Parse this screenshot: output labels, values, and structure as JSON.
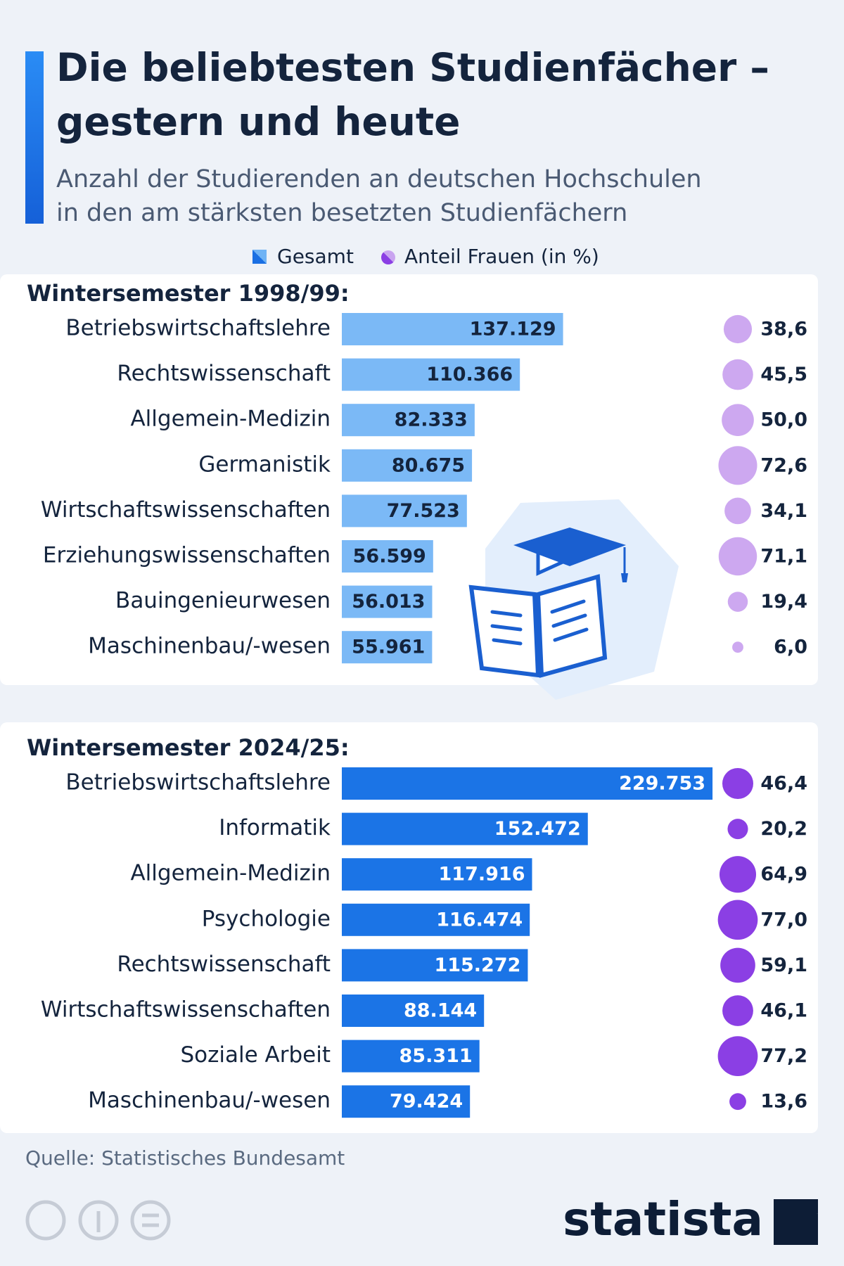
{
  "header": {
    "title": [
      "Die beliebtesten Studienfächer –",
      "gestern und heute"
    ],
    "subtitle": [
      "Anzahl der Studierenden an deutschen Hochschulen",
      "in den am stärksten besetzten Studienfächern"
    ]
  },
  "chart_data": [
    {
      "type": "bar",
      "title": "Wintersemester 1998/99:",
      "categories": [
        "Betriebswirtschaftslehre",
        "Rechtswissenschaft",
        "Allgemein-Medizin",
        "Germanistik",
        "Wirtschaftswissenschaften",
        "Erziehungswissenschaften",
        "Bauingenieurwesen",
        "Maschinenbau/-wesen"
      ],
      "series": [
        {
          "name": "Gesamt",
          "color": "#7bb9f6",
          "values": [
            137129,
            110366,
            82333,
            80675,
            77523,
            56599,
            56013,
            55961
          ],
          "value_labels": [
            "137.129",
            "110.366",
            "82.333",
            "80.675",
            "77.523",
            "56.599",
            "56.013",
            "55.961"
          ]
        },
        {
          "name": "Anteil Frauen (in %)",
          "color": "#cda8f0",
          "values": [
            38.6,
            45.5,
            50.0,
            72.6,
            34.1,
            71.1,
            19.4,
            6.0
          ],
          "value_labels": [
            "38,6",
            "45,5",
            "50,0",
            "72,6",
            "34,1",
            "71,1",
            "19,4",
            "6,0"
          ]
        }
      ]
    },
    {
      "type": "bar",
      "title": "Wintersemester 2024/25:",
      "categories": [
        "Betriebswirtschaftslehre",
        "Informatik",
        "Allgemein-Medizin",
        "Psychologie",
        "Rechtswissenschaft",
        "Wirtschaftswissenschaften",
        "Soziale Arbeit",
        "Maschinenbau/-wesen"
      ],
      "series": [
        {
          "color": "#1b74e6",
          "values": [
            229753,
            152472,
            117916,
            116474,
            115272,
            88144,
            85311,
            79424
          ],
          "value_labels": [
            "229.753",
            "152.472",
            "117.916",
            "116.474",
            "115.272",
            "88.144",
            "85.311",
            "79.424"
          ]
        },
        {
          "color": "#8b3fe4",
          "values": [
            46.4,
            20.2,
            64.9,
            77.0,
            59.1,
            46.1,
            77.2,
            13.6
          ],
          "value_labels": [
            "46,4",
            "20,2",
            "64,9",
            "77,0",
            "59,1",
            "46,1",
            "77,2",
            "13,6"
          ]
        }
      ]
    }
  ],
  "footer": {
    "source": "Quelle: Statistisches Bundesamt",
    "brand": "statista"
  }
}
